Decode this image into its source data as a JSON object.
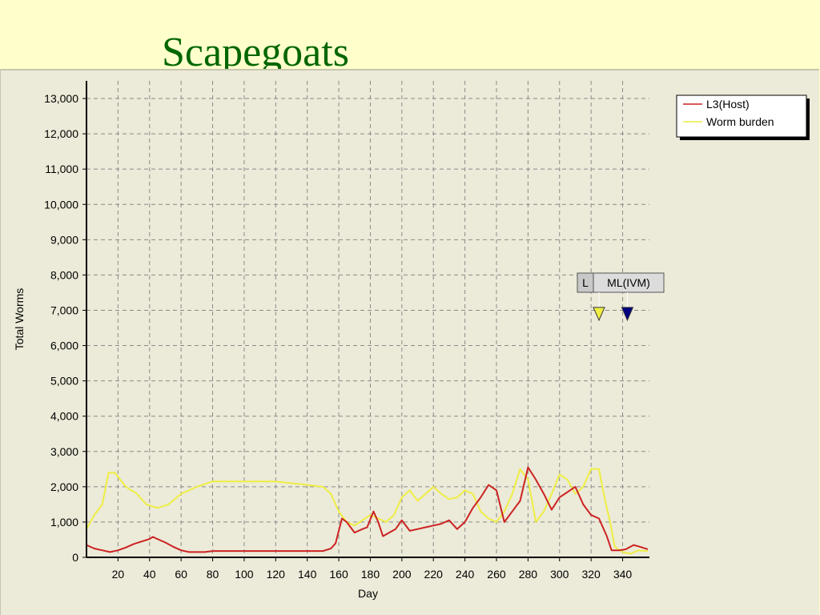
{
  "slide": {
    "title": "Scapegoats"
  },
  "chart_data": {
    "type": "line",
    "title": "Scapegoats",
    "xlabel": "Day",
    "ylabel": "Total Worms",
    "xlim": [
      0,
      357
    ],
    "ylim": [
      0,
      13500
    ],
    "x_ticks": [
      20,
      40,
      60,
      80,
      100,
      120,
      140,
      160,
      180,
      200,
      220,
      240,
      260,
      280,
      300,
      320,
      340
    ],
    "y_ticks": [
      0,
      1000,
      2000,
      3000,
      4000,
      5000,
      6000,
      7000,
      8000,
      9000,
      10000,
      11000,
      12000,
      13000
    ],
    "y_tick_labels": [
      "0",
      "1,000",
      "2,000",
      "3,000",
      "4,000",
      "5,000",
      "6,000",
      "7,000",
      "8,000",
      "9,000",
      "10,000",
      "11,000",
      "12,000",
      "13,000"
    ],
    "grid": true,
    "legend_position": "top-right",
    "series": [
      {
        "name": "L3(Host)",
        "color": "#cc2222",
        "points": [
          [
            0,
            350
          ],
          [
            5,
            250
          ],
          [
            10,
            200
          ],
          [
            15,
            150
          ],
          [
            20,
            200
          ],
          [
            25,
            280
          ],
          [
            30,
            380
          ],
          [
            35,
            450
          ],
          [
            40,
            520
          ],
          [
            42,
            580
          ],
          [
            45,
            520
          ],
          [
            50,
            420
          ],
          [
            55,
            300
          ],
          [
            60,
            200
          ],
          [
            65,
            150
          ],
          [
            75,
            150
          ],
          [
            80,
            180
          ],
          [
            100,
            180
          ],
          [
            120,
            180
          ],
          [
            140,
            180
          ],
          [
            150,
            180
          ],
          [
            155,
            250
          ],
          [
            158,
            400
          ],
          [
            162,
            1100
          ],
          [
            165,
            1000
          ],
          [
            170,
            700
          ],
          [
            175,
            800
          ],
          [
            178,
            850
          ],
          [
            182,
            1300
          ],
          [
            185,
            1000
          ],
          [
            188,
            600
          ],
          [
            192,
            700
          ],
          [
            196,
            800
          ],
          [
            200,
            1050
          ],
          [
            205,
            750
          ],
          [
            210,
            800
          ],
          [
            215,
            850
          ],
          [
            220,
            900
          ],
          [
            225,
            950
          ],
          [
            230,
            1050
          ],
          [
            235,
            800
          ],
          [
            240,
            1000
          ],
          [
            245,
            1400
          ],
          [
            250,
            1700
          ],
          [
            255,
            2050
          ],
          [
            260,
            1900
          ],
          [
            265,
            1000
          ],
          [
            270,
            1300
          ],
          [
            275,
            1600
          ],
          [
            280,
            2550
          ],
          [
            285,
            2200
          ],
          [
            290,
            1800
          ],
          [
            295,
            1350
          ],
          [
            300,
            1700
          ],
          [
            305,
            1850
          ],
          [
            310,
            2000
          ],
          [
            315,
            1500
          ],
          [
            320,
            1200
          ],
          [
            325,
            1100
          ],
          [
            330,
            600
          ],
          [
            333,
            200
          ],
          [
            338,
            200
          ],
          [
            342,
            230
          ],
          [
            347,
            350
          ],
          [
            351,
            300
          ],
          [
            356,
            230
          ]
        ]
      },
      {
        "name": "Worm burden",
        "color": "#eeee44",
        "points": [
          [
            0,
            800
          ],
          [
            5,
            1200
          ],
          [
            10,
            1500
          ],
          [
            14,
            2400
          ],
          [
            18,
            2400
          ],
          [
            25,
            2000
          ],
          [
            32,
            1800
          ],
          [
            38,
            1500
          ],
          [
            45,
            1400
          ],
          [
            52,
            1500
          ],
          [
            60,
            1800
          ],
          [
            70,
            2000
          ],
          [
            80,
            2150
          ],
          [
            100,
            2150
          ],
          [
            120,
            2150
          ],
          [
            140,
            2050
          ],
          [
            150,
            2000
          ],
          [
            155,
            1800
          ],
          [
            160,
            1300
          ],
          [
            165,
            1000
          ],
          [
            170,
            900
          ],
          [
            175,
            1050
          ],
          [
            180,
            1200
          ],
          [
            185,
            1100
          ],
          [
            190,
            1000
          ],
          [
            195,
            1200
          ],
          [
            200,
            1700
          ],
          [
            205,
            1900
          ],
          [
            210,
            1600
          ],
          [
            215,
            1800
          ],
          [
            220,
            2000
          ],
          [
            225,
            1800
          ],
          [
            230,
            1650
          ],
          [
            235,
            1700
          ],
          [
            240,
            1900
          ],
          [
            245,
            1800
          ],
          [
            250,
            1300
          ],
          [
            255,
            1100
          ],
          [
            260,
            1000
          ],
          [
            265,
            1300
          ],
          [
            270,
            1800
          ],
          [
            275,
            2500
          ],
          [
            280,
            2200
          ],
          [
            285,
            1000
          ],
          [
            290,
            1300
          ],
          [
            295,
            1800
          ],
          [
            300,
            2350
          ],
          [
            305,
            2200
          ],
          [
            310,
            1800
          ],
          [
            315,
            2000
          ],
          [
            320,
            2500
          ],
          [
            325,
            2500
          ],
          [
            328,
            1800
          ],
          [
            332,
            1000
          ],
          [
            335,
            300
          ],
          [
            340,
            150
          ],
          [
            345,
            100
          ],
          [
            350,
            200
          ],
          [
            356,
            180
          ]
        ]
      }
    ],
    "markers": [
      {
        "label": "L",
        "x": 325,
        "y": 6900,
        "color": "#eeee44"
      },
      {
        "label": "ML(IVM)",
        "x": 343,
        "y": 6900,
        "color": "#000080"
      }
    ]
  }
}
